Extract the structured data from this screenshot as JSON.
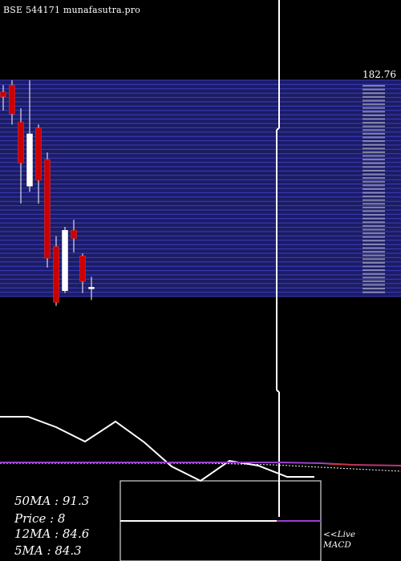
{
  "title": "BSE 544171 munafasutra.pro",
  "price_levels_label": "182.76",
  "info": {
    "ma50": "50MA : 91.3",
    "price": "Price   : 8",
    "ma12": "12MA : 84.6",
    "ma5": "5MA : 84.3"
  },
  "macd_label_1": "<<Live",
  "macd_label_2": "MACD",
  "colors": {
    "background": "#000000",
    "band": "#1c1c64",
    "band_line": "#3c3cc0",
    "bull": "#ffffff",
    "bear": "#cc0000",
    "wick": "#ffffff",
    "ma_line": "#ffffff",
    "purple_line": "#9a3fd0",
    "red_line": "#cc3333",
    "macd_line": "#9a3fd0"
  },
  "chart_data": {
    "type": "candlestick",
    "y_max_label": 182.76,
    "candles": [
      {
        "open": 176,
        "close": 172,
        "high": 182,
        "low": 160,
        "color": "bear"
      },
      {
        "open": 182,
        "close": 157,
        "high": 186,
        "low": 148,
        "color": "bear"
      },
      {
        "open": 150,
        "close": 115,
        "high": 162,
        "low": 80,
        "color": "bear"
      },
      {
        "open": 140,
        "close": 95,
        "high": 186,
        "low": 90,
        "color": "bull"
      },
      {
        "open": 145,
        "close": 100,
        "high": 148,
        "low": 80,
        "color": "bear"
      },
      {
        "open": 118,
        "close": 33,
        "high": 124,
        "low": 25,
        "color": "bear"
      },
      {
        "open": 43,
        "close": -5,
        "high": 52,
        "low": -8,
        "color": "bear"
      },
      {
        "open": 5,
        "close": 57,
        "high": 60,
        "low": 3,
        "color": "bull"
      },
      {
        "open": 57,
        "close": 50,
        "high": 66,
        "low": 38,
        "color": "bear"
      },
      {
        "open": 35,
        "close": 13,
        "high": 37,
        "low": 3,
        "color": "bear"
      },
      {
        "open": 8,
        "close": 8,
        "high": 17,
        "low": -3,
        "color": "bull"
      }
    ]
  }
}
